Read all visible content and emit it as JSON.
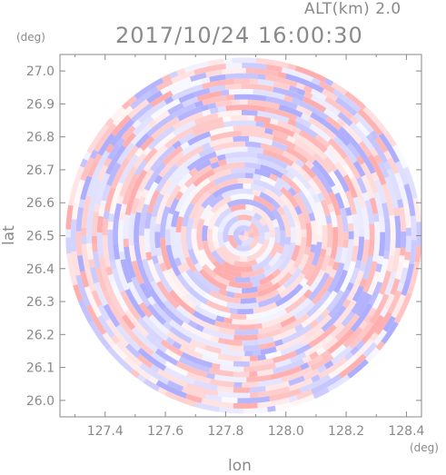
{
  "header": {
    "alt_label": "ALT(km) 2.0",
    "time_label": "2017/10/24 16:00:30"
  },
  "chart_data": {
    "type": "heatmap",
    "title": "2017/10/24 16:00:30",
    "subtitle": "ALT(km) 2.0",
    "xlabel": "lon",
    "ylabel": "lat",
    "x_unit": "(deg)",
    "y_unit": "(deg)",
    "xlim": [
      127.25,
      128.45
    ],
    "ylim": [
      25.95,
      27.05
    ],
    "x_ticks": [
      127.4,
      127.6,
      127.8,
      128.0,
      128.2,
      128.4
    ],
    "x_tick_labels": [
      "127.4",
      "127.6",
      "127.8",
      "128.0",
      "128.2",
      "128.4"
    ],
    "y_ticks": [
      26.0,
      26.1,
      26.2,
      26.3,
      26.4,
      26.5,
      26.6,
      26.7,
      26.8,
      26.9,
      27.0
    ],
    "y_tick_labels": [
      "26.0",
      "26.1",
      "26.2",
      "26.3",
      "26.4",
      "26.5",
      "26.6",
      "26.7",
      "26.8",
      "26.9",
      "27.0"
    ],
    "radar_center": [
      127.86,
      26.5
    ],
    "radar_coverage_edge": {
      "lon_min": 127.25,
      "lon_max": 128.45,
      "lat_min": 25.95,
      "lat_max": 27.05
    },
    "colormap": {
      "positive": "#ffa0a0",
      "negative": "#a0a0ff",
      "zero": "#ffffff"
    },
    "grid": false
  }
}
